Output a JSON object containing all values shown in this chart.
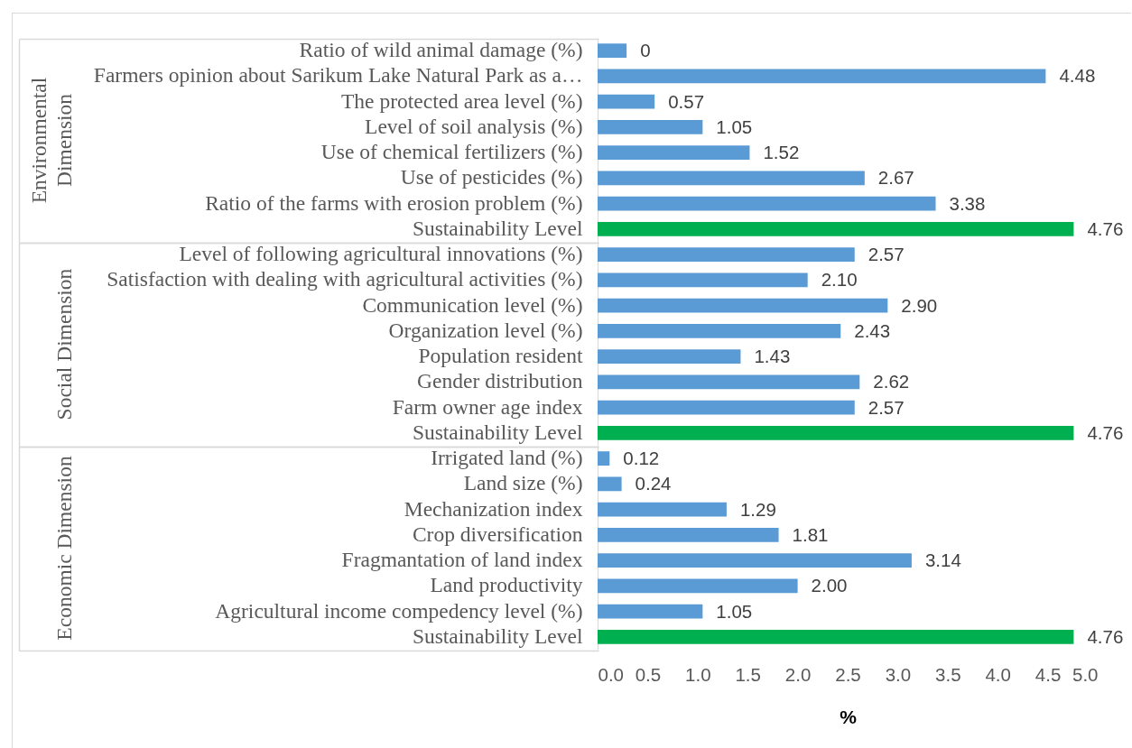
{
  "chart_data": [
    {
      "type": "bar",
      "orientation": "horizontal",
      "ylabel": "Environmental Dimension",
      "categories": [
        "Ratio of wild animal damage (%)",
        "Farmers opinion about Sarikum Lake Natural Park as a…",
        "The protected area level (%)",
        "Level of soil analysis (%)",
        "Use of chemical fertilizers (%)",
        "Use of pesticides (%)",
        "Ratio of the farms with erosion problem (%)",
        "Sustainability Level"
      ],
      "values": [
        0.29,
        4.48,
        0.57,
        1.05,
        1.52,
        2.67,
        3.38,
        4.76
      ],
      "value_labels": [
        "0",
        "4.48",
        "0.57",
        "1.05",
        "1.52",
        "2.67",
        "3.38",
        "4.76"
      ],
      "colors": [
        "#5b9bd5",
        "#5b9bd5",
        "#5b9bd5",
        "#5b9bd5",
        "#5b9bd5",
        "#5b9bd5",
        "#5b9bd5",
        "#00b050"
      ],
      "xlim": [
        0,
        5
      ],
      "tick_labels": "y"
    },
    {
      "type": "bar",
      "orientation": "horizontal",
      "ylabel": "Social Dimension",
      "categories": [
        "Level of following agricultural innovations (%)",
        "Satisfaction with dealing with agricultural activities (%)",
        "Communication level (%)",
        "Organization level (%)",
        "Population resident",
        "Gender distribution",
        "Farm owner age index",
        "Sustainability Level"
      ],
      "values": [
        2.57,
        2.1,
        2.9,
        2.43,
        1.43,
        2.62,
        2.57,
        4.76
      ],
      "value_labels": [
        "2.57",
        "2.10",
        "2.90",
        "2.43",
        "1.43",
        "2.62",
        "2.57",
        "4.76"
      ],
      "colors": [
        "#5b9bd5",
        "#5b9bd5",
        "#5b9bd5",
        "#5b9bd5",
        "#5b9bd5",
        "#5b9bd5",
        "#5b9bd5",
        "#00b050"
      ],
      "xlim": [
        0,
        5
      ],
      "tick_labels": "y"
    },
    {
      "type": "bar",
      "orientation": "horizontal",
      "ylabel": "Economic Dimension",
      "xlabel": "%",
      "categories": [
        "Irrigated land (%)",
        "Land size (%)",
        "Mechanization index",
        "Crop diversification",
        "Fragmantation of land index",
        "Land productivity",
        "Agricultural income compedency level (%)",
        "Sustainability Level"
      ],
      "values": [
        0.12,
        0.24,
        1.29,
        1.81,
        3.14,
        2.0,
        1.05,
        4.76
      ],
      "value_labels": [
        "0.12",
        "0.24",
        "1.29",
        "1.81",
        "3.14",
        "2.00",
        "1.05",
        "4.76"
      ],
      "colors": [
        "#5b9bd5",
        "#5b9bd5",
        "#5b9bd5",
        "#5b9bd5",
        "#5b9bd5",
        "#5b9bd5",
        "#5b9bd5",
        "#00b050"
      ],
      "xlim": [
        0,
        5
      ],
      "xticks": [
        {
          "value": 0,
          "label": "0.0"
        },
        0.5,
        {
          "value": 1,
          "label": "1.0"
        },
        1.5,
        {
          "value": 2,
          "label": "2.0"
        },
        2.5,
        {
          "value": 3,
          "label": "3.0"
        },
        3.5,
        {
          "value": 4,
          "label": "4.0"
        },
        4.5,
        {
          "value": 5,
          "label": "5.0"
        }
      ]
    }
  ]
}
